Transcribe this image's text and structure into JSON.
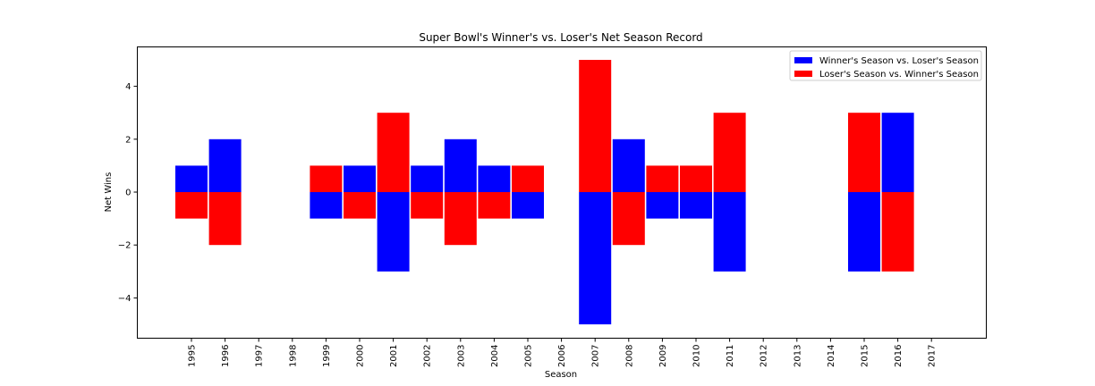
{
  "chart_data": {
    "type": "bar",
    "title": "Super Bowl's Winner's vs. Loser's Net Season Record",
    "xlabel": "Season",
    "ylabel": "Net Wins",
    "categories": [
      "1995",
      "1996",
      "1997",
      "1998",
      "1999",
      "2000",
      "2001",
      "2002",
      "2003",
      "2004",
      "2005",
      "2006",
      "2007",
      "2008",
      "2009",
      "2010",
      "2011",
      "2012",
      "2013",
      "2014",
      "2015",
      "2016",
      "2017"
    ],
    "yticks": [
      -4,
      -2,
      0,
      2,
      4
    ],
    "ylim": [
      -5.5,
      5.5
    ],
    "grid": false,
    "legend_position": "top-right",
    "series": [
      {
        "name": "Winner's Season vs. Loser's Season",
        "color": "#0000ff",
        "values": [
          1,
          2,
          null,
          null,
          -1,
          1,
          -3,
          1,
          2,
          1,
          -1,
          null,
          -5,
          2,
          -1,
          -1,
          -3,
          null,
          null,
          null,
          -3,
          3,
          null
        ]
      },
      {
        "name": "Loser's Season vs. Winner's Season",
        "color": "#ff0000",
        "values": [
          -1,
          -2,
          null,
          null,
          1,
          -1,
          3,
          -1,
          -2,
          -1,
          1,
          null,
          5,
          -2,
          1,
          1,
          3,
          null,
          null,
          null,
          3,
          -3,
          null
        ]
      }
    ]
  }
}
